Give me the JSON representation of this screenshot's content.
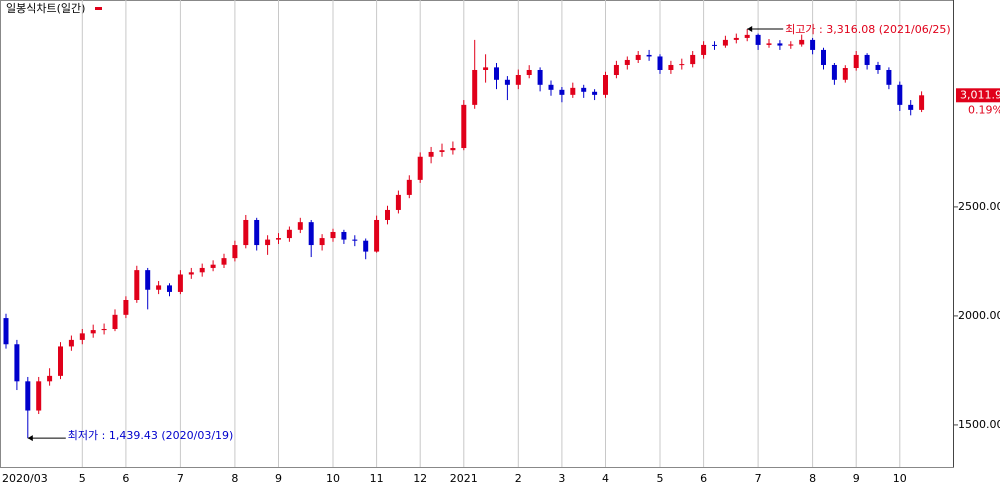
{
  "chart_data": {
    "type": "candlestick",
    "title": "일봉식차트(일간)",
    "categories": [
      "2020/03",
      null,
      null,
      null,
      null,
      null,
      null,
      "5",
      null,
      null,
      null,
      "6",
      null,
      null,
      null,
      null,
      "7",
      null,
      null,
      null,
      null,
      "8",
      null,
      null,
      null,
      "9",
      null,
      null,
      null,
      null,
      "10",
      null,
      null,
      null,
      "11",
      null,
      null,
      null,
      "12",
      null,
      null,
      null,
      "2021",
      null,
      null,
      null,
      null,
      "2",
      null,
      null,
      null,
      "3",
      null,
      null,
      null,
      "4",
      null,
      null,
      null,
      null,
      "5",
      null,
      null,
      null,
      "6",
      null,
      null,
      null,
      null,
      "7",
      null,
      null,
      null,
      null,
      "8",
      null,
      null,
      null,
      "9",
      null,
      null,
      null,
      "10",
      null,
      null
    ],
    "open": [
      1990,
      1870,
      1700,
      1566,
      1700,
      1725,
      1860,
      1890,
      1920,
      1935,
      1940,
      2005,
      2073,
      2210,
      2120,
      2140,
      2110,
      2190,
      2200,
      2220,
      2235,
      2265,
      2325,
      2440,
      2325,
      2350,
      2357,
      2395,
      2430,
      2325,
      2357,
      2385,
      2350,
      2345,
      2295,
      2440,
      2486,
      2555,
      2624,
      2730,
      2752,
      2760,
      2770,
      2968,
      3128,
      3140,
      3083,
      3060,
      3105,
      3128,
      3060,
      3037,
      3014,
      3046,
      3028,
      3014,
      3105,
      3151,
      3174,
      3197,
      3190,
      3128,
      3151,
      3155,
      3197,
      3243,
      3240,
      3266,
      3275,
      3289,
      3243,
      3250,
      3240,
      3245,
      3266,
      3220,
      3151,
      3083,
      3137,
      3197,
      3151,
      3128,
      3060,
      2968,
      2945
    ],
    "high": [
      2010,
      1890,
      1720,
      1720,
      1760,
      1880,
      1910,
      1940,
      1960,
      1965,
      2030,
      2090,
      2230,
      2220,
      2160,
      2150,
      2210,
      2220,
      2240,
      2255,
      2285,
      2345,
      2463,
      2450,
      2370,
      2380,
      2410,
      2450,
      2440,
      2375,
      2400,
      2395,
      2370,
      2355,
      2460,
      2505,
      2575,
      2645,
      2750,
      2775,
      2790,
      2800,
      2990,
      3266,
      3200,
      3160,
      3100,
      3130,
      3150,
      3140,
      3080,
      3050,
      3070,
      3060,
      3040,
      3120,
      3170,
      3190,
      3215,
      3220,
      3200,
      3170,
      3180,
      3215,
      3260,
      3260,
      3285,
      3295,
      3316.08,
      3295,
      3270,
      3265,
      3260,
      3290,
      3275,
      3230,
      3160,
      3150,
      3215,
      3205,
      3165,
      3140,
      3075,
      2990,
      3030
    ],
    "low": [
      1850,
      1660,
      1439.43,
      1550,
      1680,
      1710,
      1840,
      1870,
      1900,
      1915,
      1930,
      1990,
      2060,
      2030,
      2100,
      2090,
      2100,
      2170,
      2180,
      2205,
      2220,
      2250,
      2310,
      2300,
      2280,
      2330,
      2340,
      2380,
      2270,
      2300,
      2340,
      2330,
      2320,
      2260,
      2290,
      2420,
      2470,
      2540,
      2610,
      2700,
      2730,
      2740,
      2760,
      2950,
      3070,
      3040,
      2990,
      3040,
      3090,
      3030,
      3010,
      2980,
      3000,
      3000,
      2990,
      3000,
      3090,
      3130,
      3160,
      3170,
      3110,
      3110,
      3130,
      3140,
      3180,
      3220,
      3230,
      3250,
      3260,
      3220,
      3230,
      3220,
      3225,
      3235,
      3200,
      3130,
      3060,
      3070,
      3125,
      3130,
      3110,
      3040,
      2940,
      2920,
      2935
    ],
    "close": [
      1870,
      1700,
      1566,
      1700,
      1725,
      1860,
      1890,
      1920,
      1935,
      1940,
      2005,
      2073,
      2210,
      2120,
      2140,
      2110,
      2190,
      2200,
      2220,
      2235,
      2265,
      2325,
      2440,
      2325,
      2350,
      2357,
      2395,
      2430,
      2325,
      2357,
      2385,
      2350,
      2345,
      2295,
      2440,
      2486,
      2555,
      2624,
      2730,
      2752,
      2760,
      2770,
      2968,
      3128,
      3140,
      3083,
      3060,
      3105,
      3128,
      3060,
      3037,
      3014,
      3046,
      3028,
      3014,
      3105,
      3151,
      3174,
      3197,
      3190,
      3128,
      3151,
      3155,
      3197,
      3243,
      3240,
      3266,
      3275,
      3289,
      3243,
      3250,
      3240,
      3245,
      3266,
      3220,
      3151,
      3083,
      3137,
      3197,
      3151,
      3128,
      3060,
      2968,
      2945,
      3011.9
    ],
    "up_color": "#e0001a",
    "down_color": "#0000cc",
    "ylim": [
      1307,
      3449
    ],
    "yticks": [
      {
        "value": 1500,
        "label": "1500.00"
      },
      {
        "value": 2000,
        "label": "2000.00"
      },
      {
        "value": 2500,
        "label": "2500.00"
      }
    ],
    "high_annotation": {
      "index": 68,
      "value": 3316.08,
      "label": "최고가 : 3,316.08 (2021/06/25)"
    },
    "low_annotation": {
      "index": 2,
      "value": 1439.43,
      "label": "최저가 : 1,439.43 (2020/03/19)"
    },
    "last_price": {
      "value": 3011.9,
      "label": "3,011.9",
      "change_label": "0.19%"
    }
  }
}
